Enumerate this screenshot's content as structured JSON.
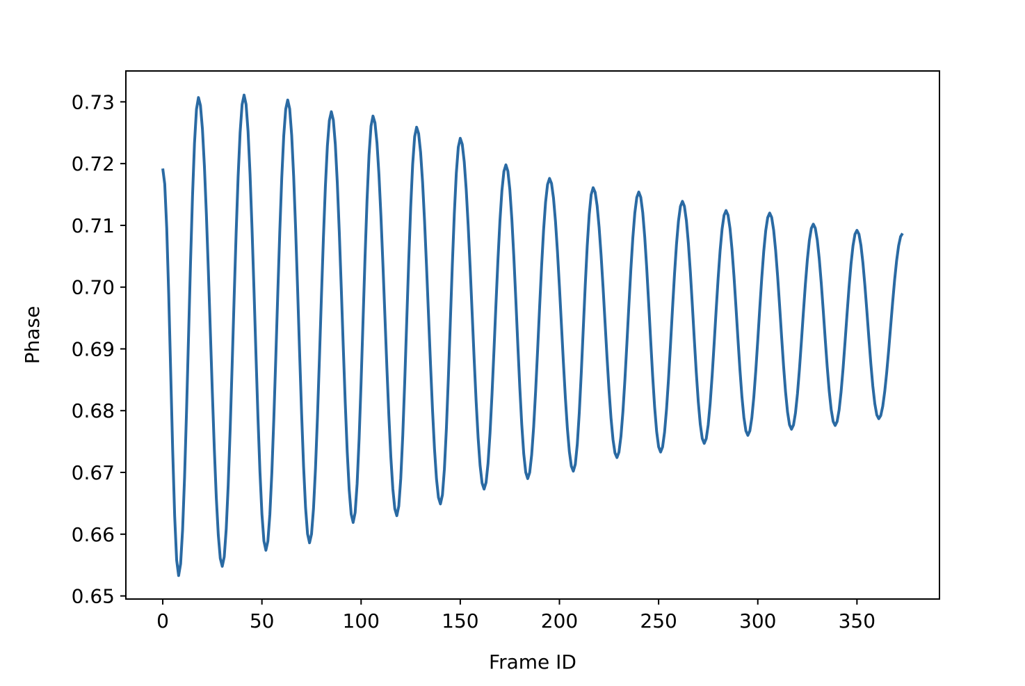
{
  "chart_data": {
    "type": "line",
    "title": "",
    "xlabel": "Frame ID",
    "ylabel": "Phase",
    "xlim": [
      -18.6,
      391.6
    ],
    "ylim": [
      0.6495,
      0.735
    ],
    "xticks": [
      0,
      50,
      100,
      150,
      200,
      250,
      300,
      350
    ],
    "yticks": [
      0.65,
      0.66,
      0.67,
      0.68,
      0.69,
      0.7,
      0.71,
      0.72,
      0.73
    ],
    "xtick_labels": [
      "0",
      "50",
      "100",
      "150",
      "200",
      "250",
      "300",
      "350"
    ],
    "ytick_labels": [
      "0.65",
      "0.66",
      "0.67",
      "0.68",
      "0.69",
      "0.70",
      "0.71",
      "0.72",
      "0.73"
    ],
    "grid": false,
    "legend": "none",
    "series": [
      {
        "color": "#2a6aa3",
        "x_range": [
          0,
          373
        ],
        "extrema": [
          {
            "x": 0,
            "y": 0.7192
          },
          {
            "x": 8,
            "y": 0.6533
          },
          {
            "x": 18,
            "y": 0.7307
          },
          {
            "x": 30,
            "y": 0.6548
          },
          {
            "x": 41,
            "y": 0.7311
          },
          {
            "x": 52,
            "y": 0.6574
          },
          {
            "x": 63,
            "y": 0.7303
          },
          {
            "x": 74,
            "y": 0.6586
          },
          {
            "x": 85,
            "y": 0.7284
          },
          {
            "x": 96,
            "y": 0.6619
          },
          {
            "x": 106,
            "y": 0.7277
          },
          {
            "x": 118,
            "y": 0.663
          },
          {
            "x": 128,
            "y": 0.7259
          },
          {
            "x": 140,
            "y": 0.6649
          },
          {
            "x": 150,
            "y": 0.7241
          },
          {
            "x": 162,
            "y": 0.6673
          },
          {
            "x": 173,
            "y": 0.7198
          },
          {
            "x": 184,
            "y": 0.669
          },
          {
            "x": 195,
            "y": 0.7176
          },
          {
            "x": 207,
            "y": 0.6702
          },
          {
            "x": 217,
            "y": 0.7161
          },
          {
            "x": 229,
            "y": 0.6724
          },
          {
            "x": 240,
            "y": 0.7154
          },
          {
            "x": 251,
            "y": 0.6733
          },
          {
            "x": 262,
            "y": 0.7139
          },
          {
            "x": 273,
            "y": 0.6747
          },
          {
            "x": 284,
            "y": 0.7124
          },
          {
            "x": 295,
            "y": 0.676
          },
          {
            "x": 306,
            "y": 0.712
          },
          {
            "x": 317,
            "y": 0.677
          },
          {
            "x": 328,
            "y": 0.7102
          },
          {
            "x": 339,
            "y": 0.6776
          },
          {
            "x": 350,
            "y": 0.7092
          },
          {
            "x": 361,
            "y": 0.6787
          },
          {
            "x": 373,
            "y": 0.7087
          }
        ]
      }
    ]
  }
}
